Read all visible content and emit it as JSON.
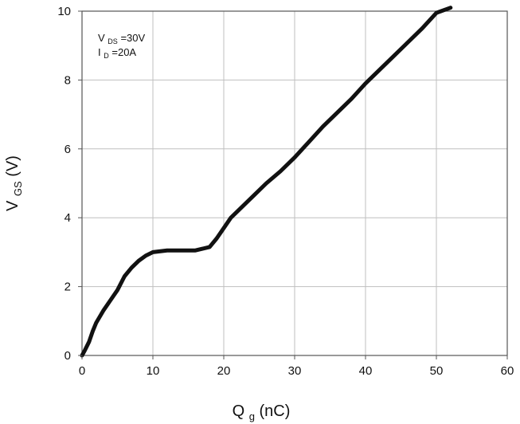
{
  "chart_data": {
    "type": "line",
    "title": "",
    "xlabel": {
      "main": "Q",
      "sub": "g",
      "suffix": " (nC)"
    },
    "ylabel": {
      "main": "V",
      "sub": "GS",
      "suffix": " (V)"
    },
    "xlim": [
      0,
      60
    ],
    "ylim": [
      0,
      10
    ],
    "x_ticks": [
      0,
      10,
      20,
      30,
      40,
      50,
      60
    ],
    "y_ticks": [
      0,
      2,
      4,
      6,
      8,
      10
    ],
    "grid": true,
    "legend": "none",
    "series": [
      {
        "x": [
          0,
          0.4,
          1,
          1.5,
          2,
          3,
          4,
          5,
          6,
          7,
          8,
          9,
          10,
          12,
          14,
          16,
          17,
          18,
          19,
          20,
          21,
          22,
          24,
          26,
          28,
          30,
          32,
          34,
          36,
          38,
          40,
          42,
          44,
          46,
          48,
          50,
          52
        ],
        "y": [
          0,
          0.15,
          0.4,
          0.7,
          0.95,
          1.3,
          1.6,
          1.9,
          2.3,
          2.55,
          2.75,
          2.9,
          3.0,
          3.05,
          3.05,
          3.05,
          3.1,
          3.15,
          3.4,
          3.7,
          4.0,
          4.2,
          4.6,
          5.0,
          5.35,
          5.75,
          6.2,
          6.65,
          7.05,
          7.45,
          7.9,
          8.3,
          8.7,
          9.1,
          9.5,
          9.95,
          10.1
        ]
      }
    ]
  },
  "annotations": {
    "lines": [
      {
        "main": "V",
        "sub": "DS",
        "suffix": "=30V"
      },
      {
        "main": "I",
        "sub": "D",
        "suffix": "=20A"
      }
    ]
  },
  "colors": {
    "series": "#111111",
    "axis": "#555555",
    "grid": "#bfbfbf",
    "text": "#111111"
  }
}
